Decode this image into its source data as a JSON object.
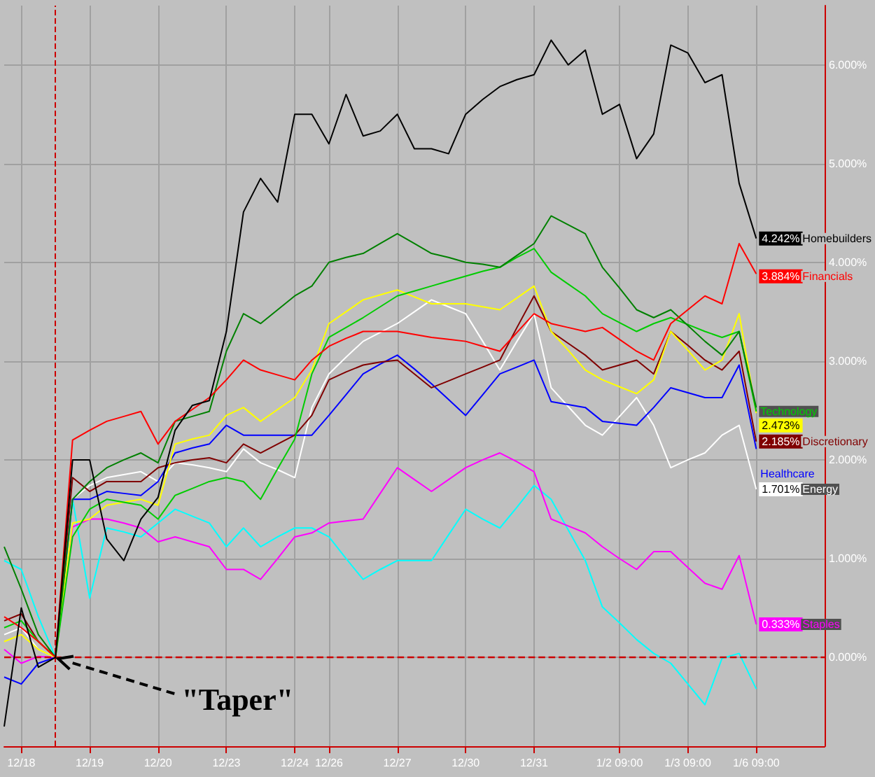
{
  "chart_data": {
    "type": "line",
    "categories": [
      null,
      "12/18",
      null,
      null,
      null,
      "12/19",
      null,
      null,
      null,
      "12/20",
      null,
      null,
      null,
      "12/23",
      null,
      null,
      null,
      "12/24",
      null,
      "12/26",
      null,
      null,
      null,
      "12/27",
      null,
      null,
      null,
      "12/30",
      null,
      null,
      null,
      "12/31",
      null,
      null,
      null,
      null,
      "1/2 09:00",
      null,
      null,
      null,
      "1/3 09:00",
      null,
      null,
      null,
      "1/6 09:00",
      null,
      null,
      null,
      null
    ],
    "series": [
      {
        "name": "Homebuilders",
        "color": "#000000",
        "values": [
          -0.7,
          0.5,
          -0.1,
          0,
          2.0,
          2.0,
          1.2,
          0.98,
          1.4,
          1.62,
          2.3,
          2.55,
          2.6,
          3.3,
          4.51,
          4.85,
          4.61,
          5.5,
          5.5,
          5.2,
          5.7,
          5.28,
          5.33,
          5.5,
          5.15,
          5.15,
          5.1,
          5.5,
          5.65,
          5.78,
          5.85,
          5.9,
          6.25,
          6.0,
          6.15,
          5.5,
          5.6,
          5.05,
          5.3,
          6.2,
          6.12,
          5.82,
          5.9,
          4.8,
          4.242,
          null,
          null,
          null,
          null
        ],
        "value_labels": [
          null,
          null,
          null,
          null,
          null,
          null,
          null,
          null,
          null,
          null,
          null,
          null,
          null,
          null,
          null,
          null,
          null,
          null,
          null,
          null,
          null,
          null,
          null,
          null,
          null,
          null,
          null,
          null,
          null,
          null,
          null,
          null,
          null,
          null,
          null,
          null,
          null,
          null,
          null,
          null,
          null,
          null,
          null,
          null,
          "4.242%",
          null,
          null,
          null,
          null
        ]
      },
      {
        "name": "Financials",
        "color": "#ff0000",
        "values": [
          0.41,
          0.3,
          0.16,
          0,
          2.2,
          2.3,
          2.39,
          2.44,
          2.49,
          2.16,
          2.39,
          2.51,
          2.63,
          2.81,
          3.01,
          2.91,
          2.86,
          2.81,
          3.01,
          3.15,
          3.23,
          3.3,
          3.3,
          3.3,
          3.27,
          3.24,
          3.22,
          3.2,
          3.15,
          3.1,
          3.29,
          3.48,
          3.38,
          3.34,
          3.3,
          3.34,
          3.22,
          3.1,
          3.01,
          3.38,
          3.52,
          3.66,
          3.58,
          4.19,
          3.884,
          null,
          null,
          null,
          null
        ],
        "value_labels": [
          null,
          null,
          null,
          null,
          null,
          null,
          null,
          null,
          null,
          null,
          null,
          null,
          null,
          null,
          null,
          null,
          null,
          null,
          null,
          null,
          null,
          null,
          null,
          null,
          null,
          null,
          null,
          null,
          null,
          null,
          null,
          null,
          null,
          null,
          null,
          null,
          null,
          null,
          null,
          null,
          null,
          null,
          null,
          null,
          "3.884%",
          null,
          null,
          null,
          null
        ]
      },
      {
        "color": "#008000",
        "values": [
          1.12,
          0.69,
          0.23,
          0,
          1.6,
          1.78,
          1.92,
          2.0,
          2.07,
          1.97,
          2.39,
          2.44,
          2.49,
          3.1,
          3.48,
          3.38,
          3.52,
          3.66,
          3.76,
          4,
          4.05,
          4.09,
          4.19,
          4.29,
          4.19,
          4.09,
          4.05,
          4,
          3.98,
          3.95,
          4.07,
          4.19,
          4.47,
          4.38,
          4.29,
          3.95,
          3.74,
          3.52,
          3.44,
          3.52,
          3.36,
          3.2,
          3.06,
          3.3,
          2.53,
          null,
          null,
          null,
          null
        ]
      },
      {
        "name": "Technology",
        "color": "#00cc00",
        "values": [
          0.3,
          0.37,
          0.16,
          0,
          1.22,
          1.5,
          1.6,
          1.57,
          1.54,
          1.4,
          1.64,
          1.71,
          1.78,
          1.82,
          1.78,
          1.6,
          1.91,
          2.21,
          2.87,
          3.24,
          3.34,
          3.44,
          3.55,
          3.66,
          3.71,
          3.76,
          3.81,
          3.86,
          3.91,
          3.95,
          4.05,
          4.14,
          3.9,
          3.78,
          3.66,
          3.48,
          3.39,
          3.3,
          3.38,
          3.44,
          3.37,
          3.3,
          3.24,
          3.3,
          2.49,
          null,
          null,
          null,
          null
        ]
      },
      {
        "color": "#ffff00",
        "values": [
          0.16,
          0.23,
          0.08,
          0,
          1.36,
          1.4,
          1.54,
          1.57,
          1.6,
          1.54,
          2.16,
          2.21,
          2.25,
          2.45,
          2.53,
          2.39,
          2.51,
          2.63,
          2.91,
          3.38,
          3.5,
          3.62,
          3.67,
          3.72,
          3.65,
          3.58,
          3.58,
          3.58,
          3.55,
          3.52,
          3.64,
          3.76,
          3.3,
          3.11,
          2.91,
          2.81,
          2.74,
          2.67,
          2.81,
          3.3,
          3.11,
          2.91,
          3.01,
          3.48,
          2.473,
          null,
          null,
          null,
          null
        ],
        "value_labels": [
          null,
          null,
          null,
          null,
          null,
          null,
          null,
          null,
          null,
          null,
          null,
          null,
          null,
          null,
          null,
          null,
          null,
          null,
          null,
          null,
          null,
          null,
          null,
          null,
          null,
          null,
          null,
          null,
          null,
          null,
          null,
          null,
          null,
          null,
          null,
          null,
          null,
          null,
          null,
          null,
          null,
          null,
          null,
          null,
          "2.473%",
          null,
          null,
          null,
          null
        ]
      },
      {
        "name": "Discretionary",
        "color": "#800000",
        "values": [
          0.37,
          0.44,
          0.16,
          0,
          1.82,
          1.68,
          1.78,
          1.78,
          1.78,
          1.92,
          1.97,
          2.0,
          2.02,
          1.97,
          2.16,
          2.07,
          2.16,
          2.25,
          2.45,
          2.81,
          2.89,
          2.96,
          2.99,
          3.01,
          2.87,
          2.73,
          2.8,
          2.87,
          2.94,
          3.01,
          3.34,
          3.66,
          3.3,
          3.18,
          3.06,
          2.91,
          2.96,
          3.01,
          2.87,
          3.3,
          3.16,
          3.01,
          2.91,
          3.1,
          2.185,
          null,
          null,
          null,
          null
        ],
        "value_labels": [
          null,
          null,
          null,
          null,
          null,
          null,
          null,
          null,
          null,
          null,
          null,
          null,
          null,
          null,
          null,
          null,
          null,
          null,
          null,
          null,
          null,
          null,
          null,
          null,
          null,
          null,
          null,
          null,
          null,
          null,
          null,
          null,
          null,
          null,
          null,
          null,
          null,
          null,
          null,
          null,
          null,
          null,
          null,
          null,
          "2.185%",
          null,
          null,
          null,
          null
        ]
      },
      {
        "name": "Healthcare",
        "color": "#0000ff",
        "values": [
          -0.2,
          -0.27,
          -0.06,
          0,
          1.6,
          1.6,
          1.68,
          1.66,
          1.64,
          1.78,
          2.07,
          2.12,
          2.16,
          2.35,
          2.25,
          2.25,
          2.25,
          2.25,
          2.25,
          2.45,
          2.66,
          2.87,
          2.97,
          3.06,
          2.92,
          2.77,
          2.61,
          2.45,
          2.66,
          2.87,
          2.94,
          3.01,
          2.59,
          2.56,
          2.53,
          2.39,
          2.37,
          2.35,
          2.53,
          2.73,
          2.68,
          2.63,
          2.63,
          2.96,
          2.11,
          null,
          null,
          null,
          null
        ]
      },
      {
        "name": "Energy",
        "color": "#ffffff",
        "values": [
          0.23,
          0.3,
          0.08,
          0,
          1.6,
          1.74,
          1.82,
          1.85,
          1.88,
          1.78,
          1.97,
          1.95,
          1.92,
          1.88,
          2.11,
          1.97,
          1.9,
          1.82,
          2.53,
          2.87,
          3.04,
          3.2,
          3.29,
          3.38,
          3.5,
          3.62,
          3.55,
          3.48,
          3.2,
          2.91,
          3.2,
          3.48,
          2.73,
          2.54,
          2.35,
          2.25,
          2.44,
          2.63,
          2.35,
          1.92,
          2.0,
          2.07,
          2.25,
          2.35,
          1.701,
          null,
          null,
          null,
          null
        ],
        "value_labels": [
          null,
          null,
          null,
          null,
          null,
          null,
          null,
          null,
          null,
          null,
          null,
          null,
          null,
          null,
          null,
          null,
          null,
          null,
          null,
          null,
          null,
          null,
          null,
          null,
          null,
          null,
          null,
          null,
          null,
          null,
          null,
          null,
          null,
          null,
          null,
          null,
          null,
          null,
          null,
          null,
          null,
          null,
          null,
          null,
          "1.701%",
          null,
          null,
          null,
          null
        ]
      },
      {
        "name": "Staples",
        "color": "#ff00ff",
        "values": [
          0.08,
          -0.06,
          0.01,
          0,
          1.32,
          1.4,
          1.4,
          1.36,
          1.31,
          1.17,
          1.22,
          1.17,
          1.12,
          0.89,
          0.89,
          0.79,
          1.0,
          1.22,
          1.26,
          1.36,
          1.38,
          1.4,
          1.66,
          1.92,
          1.8,
          1.68,
          1.8,
          1.92,
          2.0,
          2.07,
          1.98,
          1.88,
          1.4,
          1.33,
          1.26,
          1.12,
          1.0,
          0.89,
          1.07,
          1.07,
          0.91,
          0.75,
          0.69,
          1.03,
          0.333,
          null,
          null,
          null,
          null
        ],
        "value_labels": [
          null,
          null,
          null,
          null,
          null,
          null,
          null,
          null,
          null,
          null,
          null,
          null,
          null,
          null,
          null,
          null,
          null,
          null,
          null,
          null,
          null,
          null,
          null,
          null,
          null,
          null,
          null,
          null,
          null,
          null,
          null,
          null,
          null,
          null,
          null,
          null,
          null,
          null,
          null,
          null,
          null,
          null,
          null,
          null,
          "0.333%",
          null,
          null,
          null,
          null
        ]
      },
      {
        "color": "#00ffff",
        "values": [
          0.98,
          0.89,
          0.41,
          0,
          1.6,
          0.6,
          1.31,
          1.27,
          1.22,
          1.36,
          1.5,
          1.43,
          1.36,
          1.12,
          1.31,
          1.12,
          1.22,
          1.31,
          1.31,
          1.22,
          1.0,
          0.79,
          0.89,
          0.98,
          0.98,
          0.98,
          1.24,
          1.5,
          1.4,
          1.31,
          1.52,
          1.74,
          1.6,
          1.29,
          0.98,
          0.51,
          0.35,
          0.18,
          0.04,
          -0.06,
          -0.27,
          -0.48,
          -0.01,
          0.04,
          -0.32,
          null,
          null,
          null,
          null
        ]
      }
    ],
    "ylim": [
      -0.9,
      6.6
    ],
    "yticks": [
      {
        "value": 0,
        "label": "0.000%"
      },
      {
        "value": 1,
        "label": "1.000%"
      },
      {
        "value": 2,
        "label": "2.000%"
      },
      {
        "value": 3,
        "label": "3.000%"
      },
      {
        "value": 4,
        "label": "4.000%"
      },
      {
        "value": 5,
        "label": "5.000%"
      },
      {
        "value": 6,
        "label": "6.000%"
      }
    ],
    "ref_lines": [
      {
        "axis": "y",
        "value": 0,
        "color": "#cc0000",
        "line_style": "dashed"
      }
    ],
    "annotations": [
      {
        "text": "\"Taper\"",
        "y": 0
      }
    ],
    "grid": true,
    "legend": "right",
    "marker": "none"
  }
}
